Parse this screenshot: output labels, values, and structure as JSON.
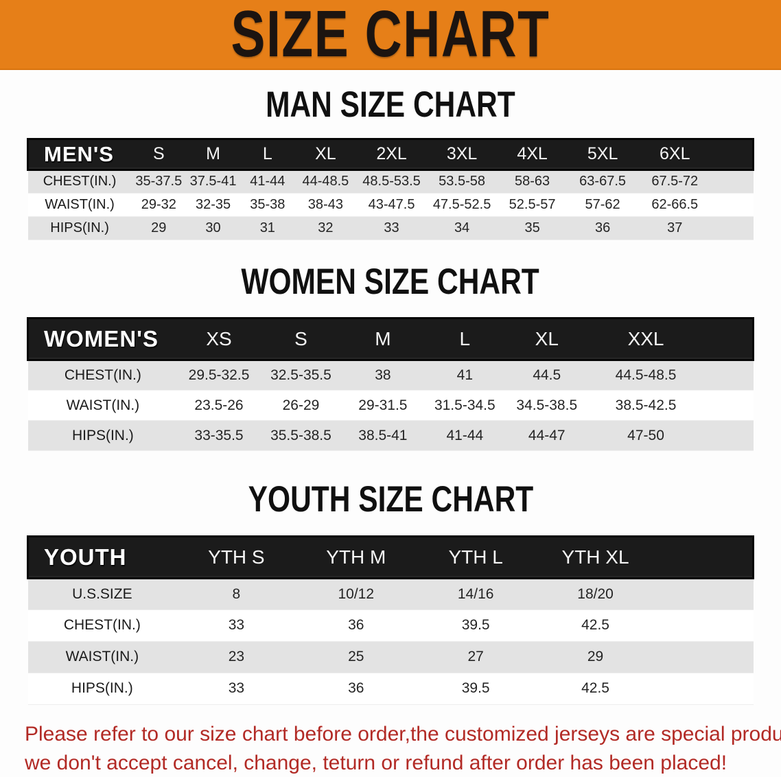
{
  "banner": {
    "title": "SIZE CHART",
    "bg_color": "#e67f18",
    "text_color": "#1c1410"
  },
  "sections": [
    {
      "heading": "MAN SIZE CHART",
      "table": {
        "group_label": "MEN'S",
        "columns": [
          "S",
          "M",
          "L",
          "XL",
          "2XL",
          "3XL",
          "4XL",
          "5XL",
          "6XL"
        ],
        "rows": [
          {
            "label": "CHEST(IN.)",
            "values": [
              "35-37.5",
              "37.5-41",
              "41-44",
              "44-48.5",
              "48.5-53.5",
              "53.5-58",
              "58-63",
              "63-67.5",
              "67.5-72"
            ]
          },
          {
            "label": "WAIST(IN.)",
            "values": [
              "29-32",
              "32-35",
              "35-38",
              "38-43",
              "43-47.5",
              "47.5-52.5",
              "52.5-57",
              "57-62",
              "62-66.5"
            ]
          },
          {
            "label": "HIPS(IN.)",
            "values": [
              "29",
              "30",
              "31",
              "32",
              "33",
              "34",
              "35",
              "36",
              "37"
            ]
          }
        ]
      }
    },
    {
      "heading": "WOMEN SIZE CHART",
      "table": {
        "group_label": "WOMEN'S",
        "columns": [
          "XS",
          "S",
          "M",
          "L",
          "XL",
          "XXL"
        ],
        "rows": [
          {
            "label": "CHEST(IN.)",
            "values": [
              "29.5-32.5",
              "32.5-35.5",
              "38",
              "41",
              "44.5",
              "44.5-48.5"
            ]
          },
          {
            "label": "WAIST(IN.)",
            "values": [
              "23.5-26",
              "26-29",
              "29-31.5",
              "31.5-34.5",
              "34.5-38.5",
              "38.5-42.5"
            ]
          },
          {
            "label": "HIPS(IN.)",
            "values": [
              "33-35.5",
              "35.5-38.5",
              "38.5-41",
              "41-44",
              "44-47",
              "47-50"
            ]
          }
        ]
      }
    },
    {
      "heading": "YOUTH SIZE CHART",
      "table": {
        "group_label": "YOUTH",
        "columns": [
          "YTH S",
          "YTH M",
          "YTH L",
          "YTH XL"
        ],
        "rows": [
          {
            "label": "U.S.SIZE",
            "values": [
              "8",
              "10/12",
              "14/16",
              "18/20"
            ]
          },
          {
            "label": "CHEST(IN.)",
            "values": [
              "33",
              "36",
              "39.5",
              "42.5"
            ]
          },
          {
            "label": "WAIST(IN.)",
            "values": [
              "23",
              "25",
              "27",
              "29"
            ]
          },
          {
            "label": "HIPS(IN.)",
            "values": [
              "33",
              "36",
              "39.5",
              "42.5"
            ]
          }
        ]
      }
    }
  ],
  "footnote": {
    "line1": "Please refer to our size chart before order,the customized jerseys are special products,",
    "line2": "we don't accept cancel, change, teturn or refund after order has been placed!",
    "color": "#b22a25"
  }
}
